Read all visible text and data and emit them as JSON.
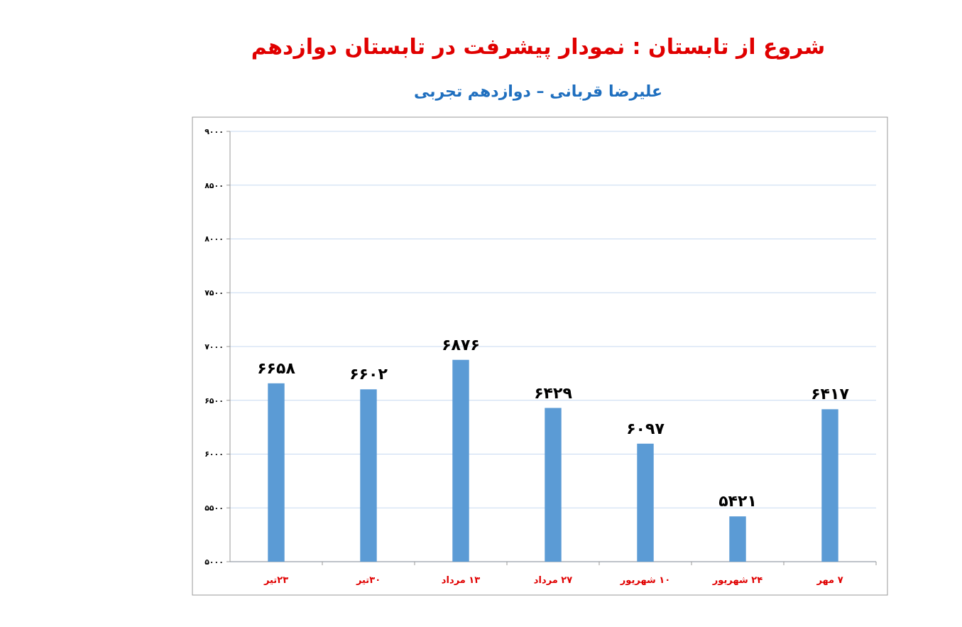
{
  "chart_data": {
    "type": "bar",
    "title": "شروع از تابستان : نمودار پیشرفت در تابستان دوازدهم",
    "subtitle": "علیرضا قربانی – دوازدهم تجربی",
    "categories": [
      "۲۳تیر",
      "۳۰تیر",
      "۱۳ مرداد",
      "۲۷ مرداد",
      "۱۰ شهریور",
      "۲۴ شهریور",
      "۷ مهر"
    ],
    "values": [
      6658,
      6602,
      6876,
      6429,
      6097,
      5421,
      6417
    ],
    "value_labels": [
      "۶۶۵۸",
      "۶۶۰۲",
      "۶۸۷۶",
      "۶۴۲۹",
      "۶۰۹۷",
      "۵۴۲۱",
      "۶۴۱۷"
    ],
    "color": "#5b9bd5",
    "ylim": [
      5000,
      9000
    ],
    "yticks": [
      {
        "value": 5000,
        "label": "۵۰۰۰"
      },
      {
        "value": 5500,
        "label": "۵۵۰۰"
      },
      {
        "value": 6000,
        "label": "۶۰۰۰"
      },
      {
        "value": 6500,
        "label": "۶۵۰۰"
      },
      {
        "value": 7000,
        "label": "۷۰۰۰"
      },
      {
        "value": 7500,
        "label": "۷۵۰۰"
      },
      {
        "value": 8000,
        "label": "۸۰۰۰"
      },
      {
        "value": 8500,
        "label": "۸۵۰۰"
      },
      {
        "value": 9000,
        "label": "۹۰۰۰"
      }
    ],
    "grid": "y"
  }
}
